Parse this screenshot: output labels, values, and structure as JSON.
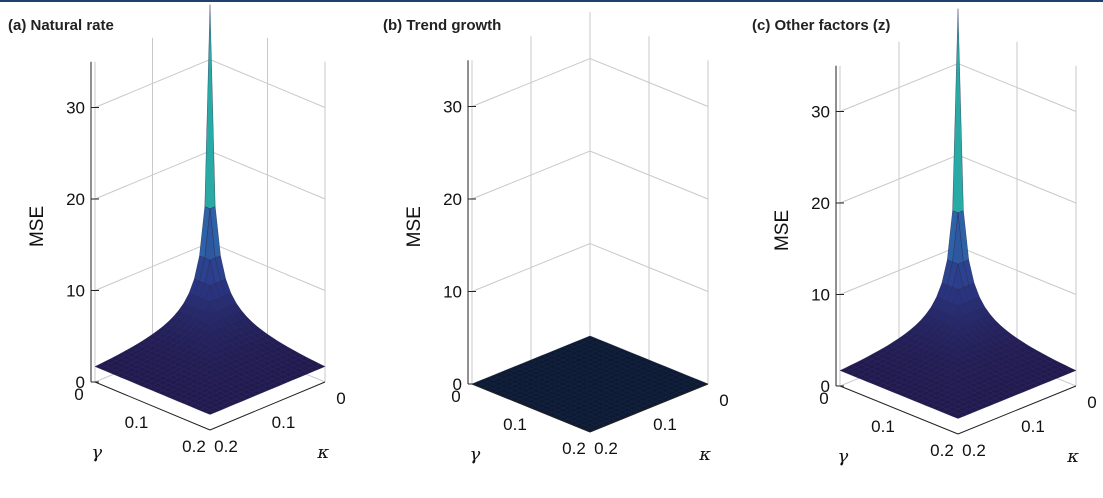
{
  "chart_data": [
    {
      "type": "surface",
      "title": "(a) Natural rate",
      "zlabel": "MSE",
      "x_axis_label": "γ",
      "y_axis_label": "κ",
      "x_ticks": [
        "0",
        "0.1",
        "0.2"
      ],
      "y_ticks": [
        "0",
        "0.1",
        "0.2"
      ],
      "z_ticks": [
        "0",
        "10",
        "20",
        "30"
      ],
      "zlim": [
        0,
        35
      ],
      "colormap": [
        "#1e0f3c",
        "#2b3a8a",
        "#2f77b5",
        "#27b7a0",
        "#8ad150",
        "#f6e91f"
      ],
      "surface": {
        "corner_value": 1.0,
        "peak_value": 36.0
      }
    },
    {
      "type": "surface",
      "title": "(b) Trend growth",
      "zlabel": "MSE",
      "x_axis_label": "γ",
      "y_axis_label": "κ",
      "x_ticks": [
        "0",
        "0.1",
        "0.2"
      ],
      "y_ticks": [
        "0",
        "0.1",
        "0.2"
      ],
      "z_ticks": [
        "0",
        "10",
        "20",
        "30"
      ],
      "zlim": [
        0,
        35
      ],
      "colormap": [
        "#0d1a33",
        "#0d1a33"
      ],
      "surface": {
        "corner_value": 0.0,
        "peak_value": 0.0
      }
    },
    {
      "type": "surface",
      "title": "(c) Other factors (z)",
      "zlabel": "MSE",
      "x_axis_label": "γ",
      "y_axis_label": "κ",
      "x_ticks": [
        "0",
        "0.1",
        "0.2"
      ],
      "y_ticks": [
        "0",
        "0.1",
        "0.2"
      ],
      "z_ticks": [
        "0",
        "10",
        "20",
        "30"
      ],
      "zlim": [
        0,
        35
      ],
      "colormap": [
        "#1e0f3c",
        "#2b3a8a",
        "#2f77b5",
        "#27b7a0",
        "#8ad150",
        "#f6e91f"
      ],
      "surface": {
        "corner_value": 1.0,
        "peak_value": 36.0
      }
    }
  ]
}
